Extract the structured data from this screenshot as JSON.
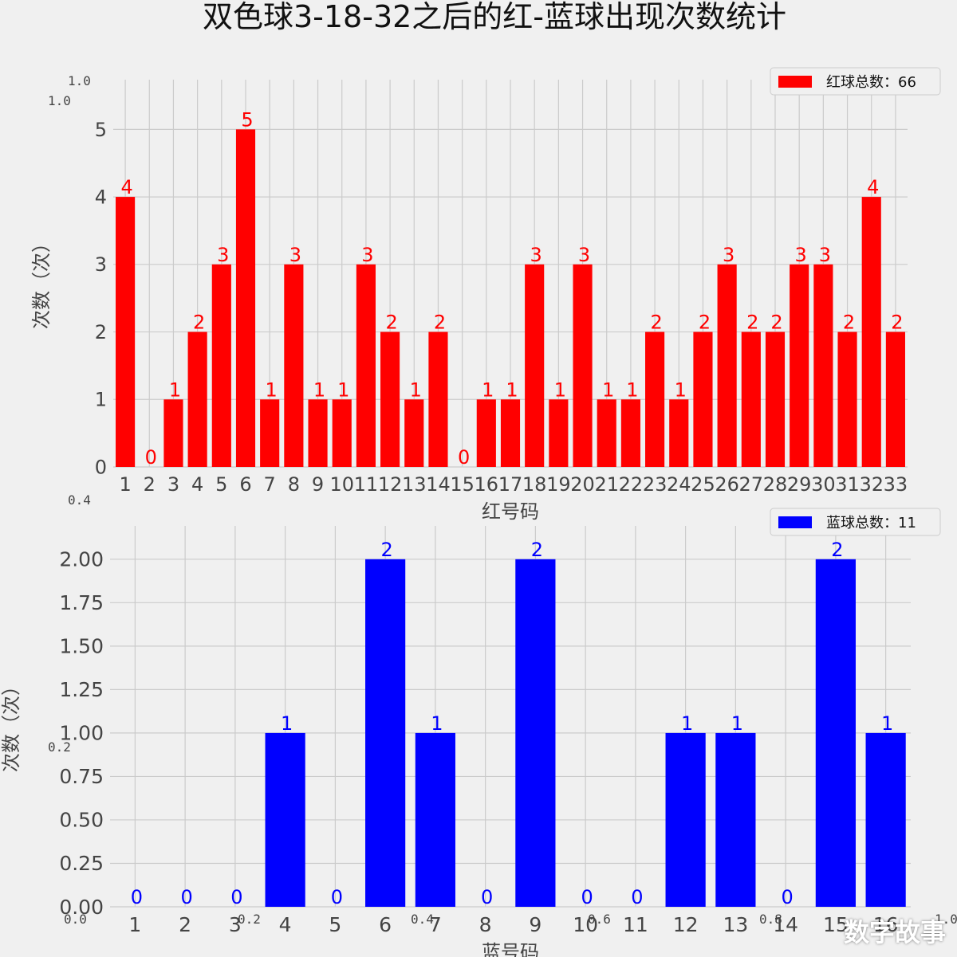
{
  "title": "双色球3-18-32之后的红-蓝球出现次数统计",
  "watermark": "数字故事",
  "chart_data": [
    {
      "type": "bar",
      "name": "red",
      "categories": [
        "1",
        "2",
        "3",
        "4",
        "5",
        "6",
        "7",
        "8",
        "9",
        "10",
        "11",
        "12",
        "13",
        "14",
        "15",
        "16",
        "17",
        "18",
        "19",
        "20",
        "21",
        "22",
        "23",
        "24",
        "25",
        "26",
        "27",
        "28",
        "29",
        "30",
        "31",
        "32",
        "33"
      ],
      "series": [
        {
          "name": "红球总数：66",
          "color": "#ff0000",
          "values": [
            4,
            0,
            1,
            2,
            3,
            5,
            1,
            3,
            1,
            1,
            3,
            2,
            1,
            2,
            0,
            1,
            1,
            3,
            1,
            3,
            1,
            1,
            2,
            1,
            2,
            3,
            2,
            2,
            3,
            3,
            2,
            4,
            2
          ]
        }
      ],
      "xlabel": "红号码",
      "ylabel": "次数（次）",
      "ylim": [
        0,
        5.5
      ],
      "yticks": [
        "0",
        "1",
        "2",
        "3",
        "4",
        "5"
      ],
      "grid": true,
      "legend": "top-right"
    },
    {
      "type": "bar",
      "name": "blue",
      "categories": [
        "1",
        "2",
        "3",
        "4",
        "5",
        "6",
        "7",
        "8",
        "9",
        "10",
        "11",
        "12",
        "13",
        "14",
        "15",
        "16"
      ],
      "series": [
        {
          "name": "蓝球总数：11",
          "color": "#0000ff",
          "values": [
            0,
            0,
            0,
            1,
            0,
            2,
            1,
            0,
            2,
            0,
            0,
            1,
            1,
            0,
            2,
            1
          ]
        }
      ],
      "xlabel": "蓝号码",
      "ylabel": "次数（次）",
      "ylim": [
        0,
        2.1
      ],
      "yticks": [
        "0.00",
        "0.25",
        "0.50",
        "0.75",
        "1.00",
        "1.25",
        "1.50",
        "1.75",
        "2.00"
      ],
      "grid": true,
      "legend": "top-right"
    }
  ],
  "ghost_axis": {
    "yticks": [
      "1.0",
      "1.0",
      "0.4",
      "0.2",
      "0.0"
    ],
    "xticks": [
      "0.0",
      "0.2",
      "0.4",
      "0.6",
      "0.8",
      "1.0"
    ]
  }
}
